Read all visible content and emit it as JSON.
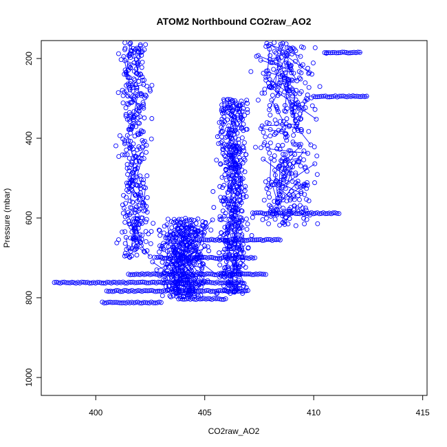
{
  "chart_data": {
    "type": "scatter",
    "title": "ATOM2 Northbound CO2raw_AO2",
    "xlabel": "CO2raw_AO2",
    "ylabel": "Pressure (mbar)",
    "xlim": [
      397.5,
      415.2
    ],
    "ylim": [
      1045,
      155
    ],
    "y_axis_inverted": true,
    "x_ticks": [
      400,
      405,
      410,
      415
    ],
    "y_ticks": [
      200,
      400,
      600,
      800,
      1000
    ],
    "x_tick_labels": [
      "400",
      "405",
      "410",
      "415"
    ],
    "y_tick_labels": [
      "200",
      "400",
      "600",
      "800",
      "1000"
    ],
    "series_color": "#0000ff",
    "marker": "open-circle",
    "connected_by_lines": true,
    "grid": false,
    "clusters": [
      {
        "x_center": 401.8,
        "x_spread": 1.2,
        "p_min": 160,
        "p_max": 700,
        "n": 380
      },
      {
        "x_center": 406.3,
        "x_spread": 1.1,
        "p_min": 300,
        "p_max": 790,
        "n": 520
      },
      {
        "x_center": 408.8,
        "x_spread": 2.2,
        "p_min": 160,
        "p_max": 620,
        "n": 420
      },
      {
        "x_center": 404.0,
        "x_spread": 2.0,
        "p_min": 600,
        "p_max": 800,
        "n": 380
      }
    ],
    "horizontal_runs": [
      {
        "p": 762,
        "x_start": 398.1,
        "x_end": 406.8
      },
      {
        "p": 812,
        "x_start": 400.3,
        "x_end": 403.0
      },
      {
        "p": 803,
        "x_start": 403.8,
        "x_end": 406.0
      },
      {
        "p": 783,
        "x_start": 400.5,
        "x_end": 407.0
      },
      {
        "p": 741,
        "x_start": 401.5,
        "x_end": 407.8
      },
      {
        "p": 700,
        "x_start": 402.8,
        "x_end": 407.3
      },
      {
        "p": 655,
        "x_start": 404.5,
        "x_end": 408.5
      },
      {
        "p": 588,
        "x_start": 407.2,
        "x_end": 411.2
      },
      {
        "p": 185,
        "x_start": 410.5,
        "x_end": 412.2
      },
      {
        "p": 295,
        "x_start": 410.0,
        "x_end": 412.5
      }
    ]
  }
}
